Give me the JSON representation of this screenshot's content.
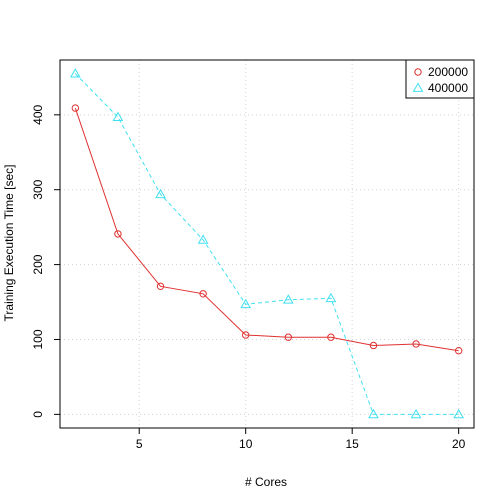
{
  "chart_data": {
    "type": "line",
    "title": "",
    "xlabel": "# Cores",
    "ylabel": "Training Execution Time [sec]",
    "xlim": [
      1.28,
      20.72
    ],
    "ylim": [
      -18.2,
      473.2
    ],
    "x_ticks": [
      5,
      10,
      15,
      20
    ],
    "y_ticks": [
      0,
      100,
      200,
      300,
      400
    ],
    "grid": true,
    "legend_position": "top-right",
    "x": [
      2,
      4,
      6,
      8,
      10,
      12,
      14,
      16,
      18,
      20
    ],
    "series": [
      {
        "name": "200000",
        "color": "#e03030",
        "line_style": "solid",
        "marker": "circle",
        "values": [
          409,
          241,
          171,
          161,
          106,
          103,
          103,
          92,
          94,
          85
        ]
      },
      {
        "name": "400000",
        "color": "#40e0f0",
        "line_style": "dashed",
        "marker": "triangle",
        "values": [
          455,
          397,
          294,
          233,
          147,
          153,
          155,
          0,
          0,
          0
        ]
      }
    ]
  }
}
